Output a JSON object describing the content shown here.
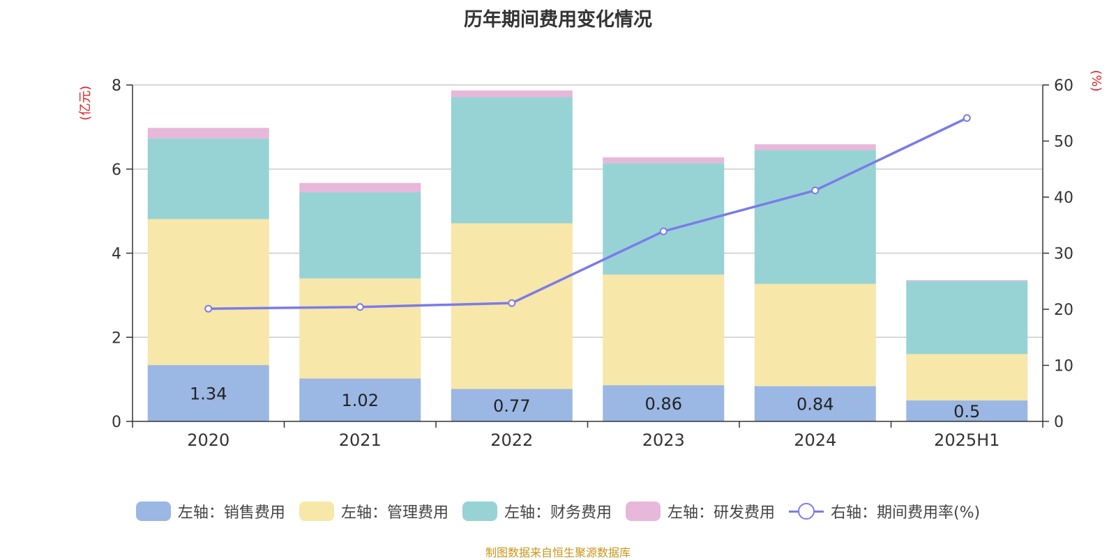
{
  "title": "历年期间费用变化情况",
  "source": "制图数据来自恒生聚源数据库",
  "chart_data": {
    "type": "bar",
    "stacked": true,
    "categories": [
      "2020",
      "2021",
      "2022",
      "2023",
      "2024",
      "2025H1"
    ],
    "left_axis": {
      "unit_label": "(亿元)",
      "ylim": [
        0,
        8
      ],
      "ticks": [
        "0",
        "2",
        "4",
        "6",
        "8"
      ]
    },
    "right_axis": {
      "unit_label": "(%)",
      "ylim": [
        0,
        60
      ],
      "ticks": [
        "0",
        "10",
        "20",
        "30",
        "40",
        "50",
        "60"
      ]
    },
    "grid": true,
    "legend_position": "bottom",
    "series": [
      {
        "name": "左轴：销售费用",
        "axis": "left",
        "type": "bar",
        "color": "#9bb7e3",
        "values": [
          1.34,
          1.02,
          0.77,
          0.86,
          0.84,
          0.5
        ],
        "show_labels": true
      },
      {
        "name": "左轴：管理费用",
        "axis": "left",
        "type": "bar",
        "color": "#f7e7a8",
        "values": [
          3.47,
          2.38,
          3.94,
          2.63,
          2.43,
          1.1
        ]
      },
      {
        "name": "左轴：财务费用",
        "axis": "left",
        "type": "bar",
        "color": "#97d3d4",
        "values": [
          1.92,
          2.05,
          3.0,
          2.65,
          3.18,
          1.74
        ]
      },
      {
        "name": "左轴：研发费用",
        "axis": "left",
        "type": "bar",
        "color": "#e7b8da",
        "values": [
          0.25,
          0.22,
          0.16,
          0.14,
          0.14,
          0.02
        ]
      },
      {
        "name": "右轴：期间费用率(%)",
        "axis": "right",
        "type": "line",
        "color": "#7b7bea",
        "values": [
          20.1,
          20.4,
          21.1,
          33.9,
          41.2,
          54.1
        ]
      }
    ]
  }
}
